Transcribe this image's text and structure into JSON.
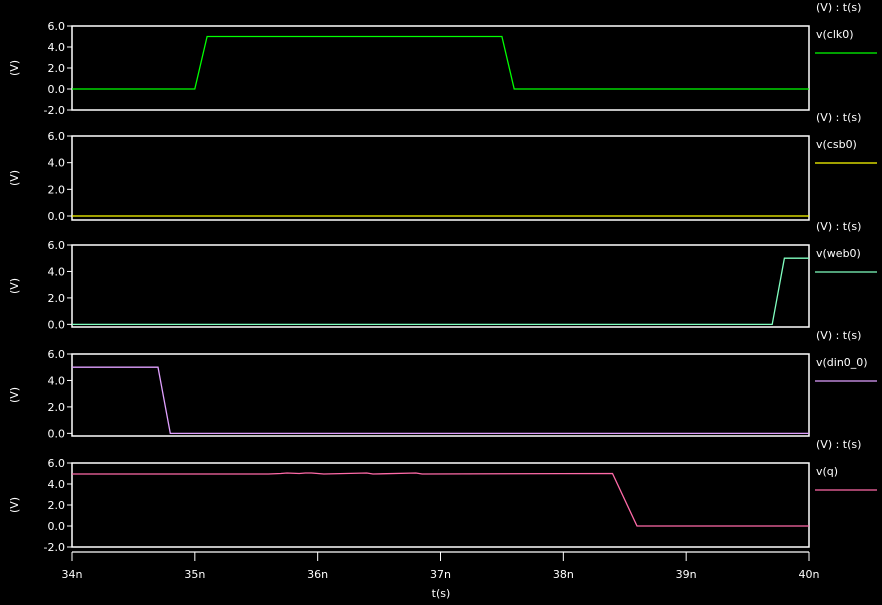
{
  "chart_data": {
    "type": "line",
    "xlabel": "t(s)",
    "xlim": [
      34,
      40
    ],
    "xticks": [
      "34n",
      "35n",
      "36n",
      "37n",
      "38n",
      "39n",
      "40n"
    ],
    "grid": false,
    "legend_placement": "right",
    "panels": [
      {
        "ylabel": "(V)",
        "legend_header": "(V) : t(s)",
        "ylim": [
          -2,
          6
        ],
        "yticks": [
          "6.0",
          "4.0",
          "2.0",
          "0.0",
          "-2.0"
        ],
        "ytick_values": [
          6,
          4,
          2,
          0,
          -2
        ],
        "series": {
          "name": "v(clk0)",
          "color": "#00ff00",
          "x": [
            34,
            35.0,
            35.1,
            37.5,
            37.6,
            40
          ],
          "y": [
            0,
            0,
            5,
            5,
            0,
            0
          ]
        }
      },
      {
        "ylabel": "(V)",
        "legend_header": "(V) : t(s)",
        "ylim": [
          -0.3,
          6
        ],
        "yticks": [
          "6.0",
          "4.0",
          "2.0",
          "0.0"
        ],
        "ytick_values": [
          6,
          4,
          2,
          0
        ],
        "series": {
          "name": "v(csb0)",
          "color": "#ffff00",
          "x": [
            34,
            40
          ],
          "y": [
            0,
            0
          ]
        }
      },
      {
        "ylabel": "(V)",
        "legend_header": "(V) : t(s)",
        "ylim": [
          -0.2,
          6
        ],
        "yticks": [
          "6.0",
          "4.0",
          "2.0",
          "0.0"
        ],
        "ytick_values": [
          6,
          4,
          2,
          0
        ],
        "series": {
          "name": "v(web0)",
          "color": "#80ffc0",
          "x": [
            34,
            39.7,
            39.8,
            40
          ],
          "y": [
            0,
            0,
            5,
            5
          ]
        }
      },
      {
        "ylabel": "(V)",
        "legend_header": "(V) : t(s)",
        "ylim": [
          -0.2,
          6
        ],
        "yticks": [
          "6.0",
          "4.0",
          "2.0",
          "0.0"
        ],
        "ytick_values": [
          6,
          4,
          2,
          0
        ],
        "series": {
          "name": "v(din0_0)",
          "color": "#e0a0ff",
          "x": [
            34,
            34.7,
            34.8,
            40
          ],
          "y": [
            5,
            5,
            0,
            0
          ]
        }
      },
      {
        "ylabel": "(V)",
        "legend_header": "(V) : t(s)",
        "ylim": [
          -2,
          6
        ],
        "yticks": [
          "6.0",
          "4.0",
          "2.0",
          "0.0",
          "-2.0"
        ],
        "ytick_values": [
          6,
          4,
          2,
          0,
          -2
        ],
        "series": {
          "name": "v(q)",
          "color": "#ff6aa8",
          "x": [
            34,
            35.6,
            35.7,
            35.75,
            35.85,
            35.9,
            35.95,
            36.05,
            36.4,
            36.45,
            36.8,
            36.85,
            38.4,
            38.6,
            40
          ],
          "y": [
            4.95,
            4.95,
            5.0,
            5.05,
            5.0,
            5.05,
            5.05,
            4.95,
            5.05,
            4.95,
            5.05,
            4.95,
            5.0,
            0,
            0
          ]
        }
      }
    ]
  }
}
